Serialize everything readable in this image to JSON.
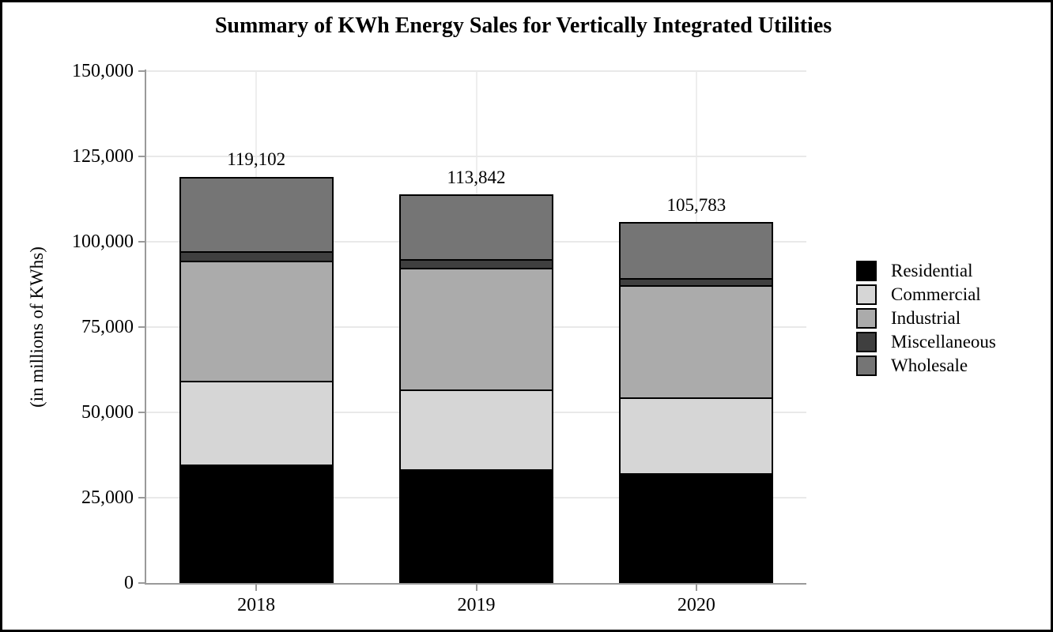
{
  "chart_data": {
    "type": "bar",
    "subtype": "stacked",
    "title": "Summary of KWh Energy Sales for Vertically Integrated Utilities",
    "ylabel": "(in millions of KWhs)",
    "categories": [
      "2018",
      "2019",
      "2020"
    ],
    "series": [
      {
        "name": "Residential",
        "color": "#000000",
        "values": [
          34200,
          32800,
          31700
        ]
      },
      {
        "name": "Commercial",
        "color": "#d6d6d6",
        "values": [
          24600,
          23400,
          22200
        ]
      },
      {
        "name": "Industrial",
        "color": "#ababab",
        "values": [
          35300,
          35650,
          33000
        ]
      },
      {
        "name": "Miscellaneous",
        "color": "#3f3f3f",
        "values": [
          2600,
          2550,
          2100
        ]
      },
      {
        "name": "Wholesale",
        "color": "#757575",
        "values": [
          22402,
          19442,
          16783
        ]
      }
    ],
    "totals_formatted": [
      "119,102",
      "113,842",
      "105,783"
    ],
    "ylim": [
      0,
      150000
    ],
    "ytick_step": 25000,
    "ytick_labels": [
      "0",
      "25,000",
      "50,000",
      "75,000",
      "100,000",
      "125,000",
      "150,000"
    ],
    "grid": "horizontal and faint vertical at category centers",
    "legend_position": "right",
    "legend_labels": [
      "Residential",
      "Commercial",
      "Industrial",
      "Miscellaneous",
      "Wholesale"
    ],
    "colors": {
      "gridline": "#e9e9e9",
      "axis": "#9a9a9a",
      "bar_border": "#000000",
      "frame_border": "#000000",
      "background": "#ffffff"
    }
  }
}
